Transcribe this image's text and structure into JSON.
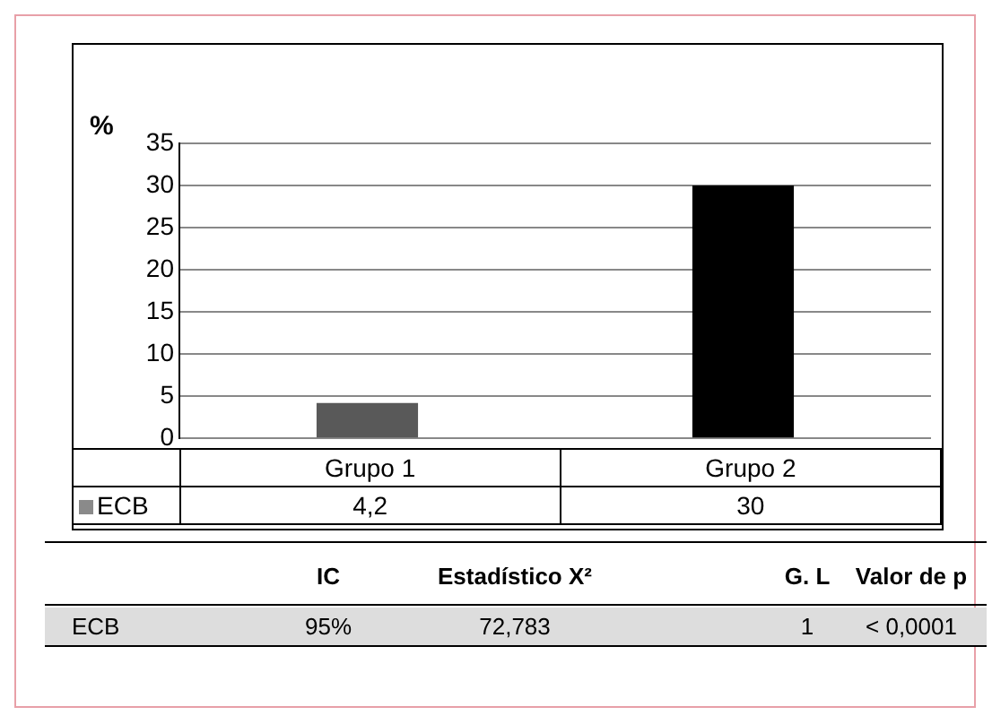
{
  "chart_data": {
    "type": "bar",
    "ylabel": "%",
    "categories": [
      "Grupo 1",
      "Grupo 2"
    ],
    "series": [
      {
        "name": "ECB",
        "colors": [
          "#595959",
          "#000000"
        ],
        "values": [
          4.2,
          30
        ],
        "value_labels": [
          "4,2",
          "30"
        ]
      }
    ],
    "ylim": [
      0,
      35
    ],
    "yticks": [
      0,
      5,
      10,
      15,
      20,
      25,
      30,
      35
    ],
    "grid": "y",
    "annotations": [
      "IC",
      "Estadístico X²",
      "G. L",
      "Valor de p",
      "ECB",
      "95%",
      "72,783",
      "1",
      "< 0,0001"
    ]
  }
}
